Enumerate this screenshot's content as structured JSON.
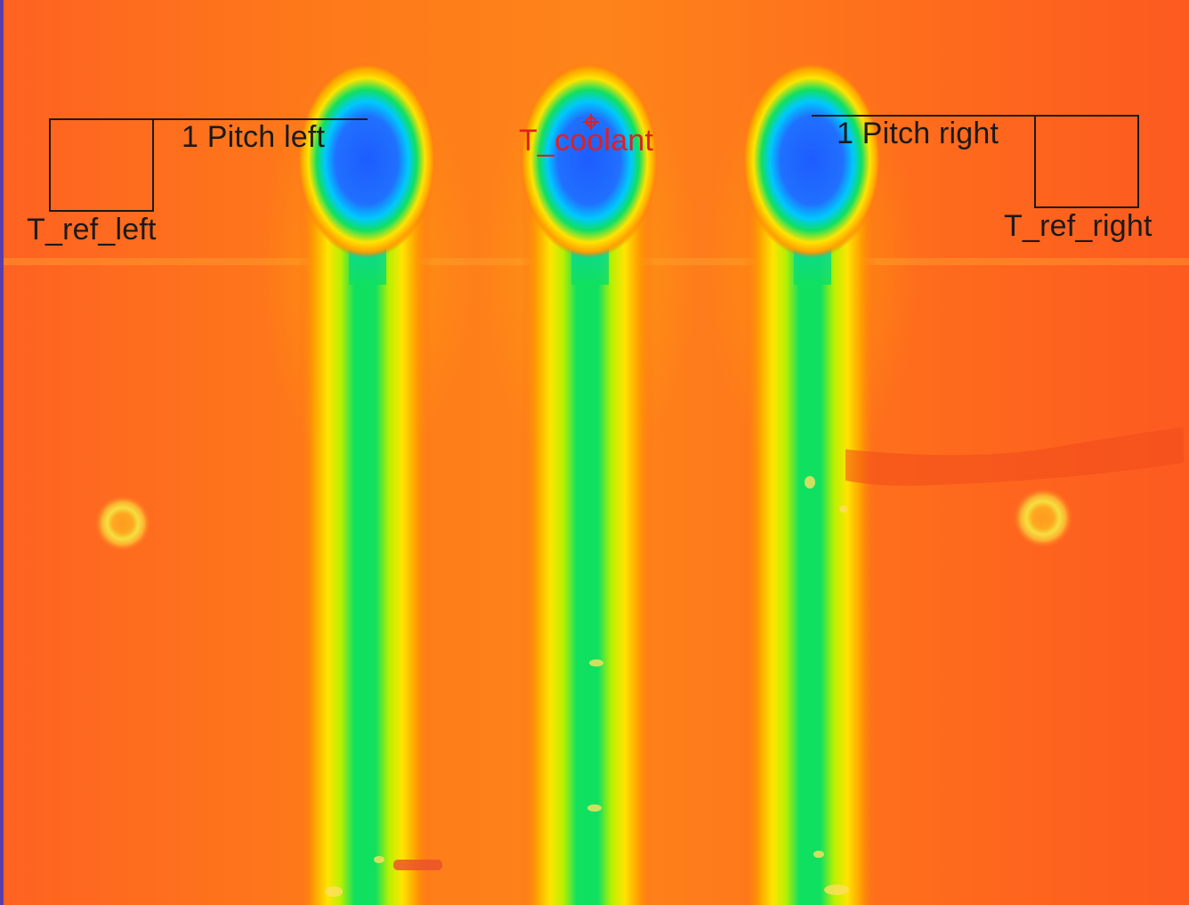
{
  "labels": {
    "pitch_left": "1 Pitch left",
    "pitch_right": "1 Pitch right",
    "coolant": "T_coolant",
    "ref_left": "T_ref_left",
    "ref_right": "T_ref_right"
  },
  "colors": {
    "background": "#fe6a1c",
    "annotation": "#1a1a1a",
    "coolant_label": "#e02020",
    "left_border": "#5a3da8"
  },
  "palette": [
    "#1e5cff",
    "#00c8ff",
    "#00e060",
    "#b8f000",
    "#ffe400",
    "#ffa000",
    "#fe6a1c"
  ]
}
